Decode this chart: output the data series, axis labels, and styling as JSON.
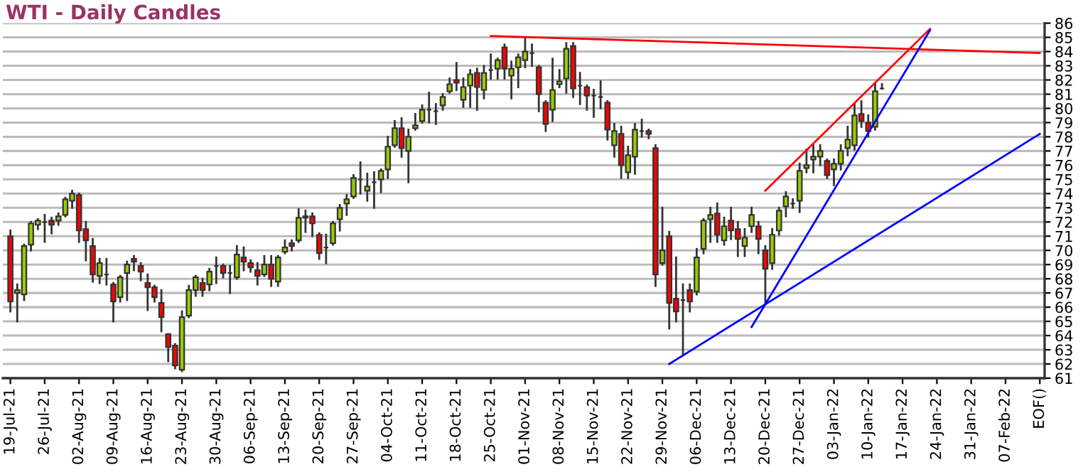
{
  "chart_data": {
    "type": "candlestick",
    "title": "WTI - Daily Candles",
    "categories": [
      "19-Jul-21",
      null,
      null,
      null,
      null,
      "26-Jul-21",
      null,
      null,
      null,
      null,
      "02-Aug-21",
      null,
      null,
      null,
      null,
      "09-Aug-21",
      null,
      null,
      null,
      null,
      "16-Aug-21",
      null,
      null,
      null,
      null,
      "23-Aug-21",
      null,
      null,
      null,
      null,
      "30-Aug-21",
      null,
      null,
      null,
      null,
      "06-Sep-21",
      null,
      null,
      null,
      null,
      "13-Sep-21",
      null,
      null,
      null,
      null,
      "20-Sep-21",
      null,
      null,
      null,
      null,
      "27-Sep-21",
      null,
      null,
      null,
      null,
      "04-Oct-21",
      null,
      null,
      null,
      null,
      "11-Oct-21",
      null,
      null,
      null,
      null,
      "18-Oct-21",
      null,
      null,
      null,
      null,
      "25-Oct-21",
      null,
      null,
      null,
      null,
      "01-Nov-21",
      null,
      null,
      null,
      null,
      "08-Nov-21",
      null,
      null,
      null,
      null,
      "15-Nov-21",
      null,
      null,
      null,
      null,
      "22-Nov-21",
      null,
      null,
      null,
      null,
      "29-Nov-21",
      null,
      null,
      null,
      null,
      "06-Dec-21",
      null,
      null,
      null,
      null,
      "13-Dec-21",
      null,
      null,
      null,
      null,
      "20-Dec-21",
      null,
      null,
      null,
      null,
      "27-Dec-21",
      null,
      null,
      null,
      null,
      "03-Jan-22",
      null,
      null,
      null,
      null,
      "10-Jan-22",
      null,
      null,
      null,
      null,
      "17-Jan-22",
      null,
      null,
      null,
      null,
      "24-Jan-22",
      null,
      null,
      null,
      null,
      "31-Jan-22",
      null,
      null,
      null,
      null,
      "07-Feb-22",
      null,
      null,
      null,
      null,
      "EOF()"
    ],
    "ohlc": [
      [
        71.0,
        71.4,
        65.7,
        66.4
      ],
      [
        67.0,
        67.6,
        65.0,
        67.2
      ],
      [
        66.9,
        70.4,
        66.5,
        70.3
      ],
      [
        70.4,
        72.0,
        70.0,
        71.9
      ],
      [
        71.8,
        72.2,
        71.5,
        72.1
      ],
      [
        72.0,
        72.5,
        70.6,
        72.0
      ],
      [
        72.1,
        72.3,
        71.2,
        71.8
      ],
      [
        72.1,
        72.6,
        71.8,
        72.4
      ],
      [
        72.5,
        73.7,
        72.4,
        73.6
      ],
      [
        73.5,
        74.2,
        73.0,
        74.0
      ],
      [
        73.9,
        74.0,
        70.6,
        71.4
      ],
      [
        71.5,
        72.0,
        69.3,
        70.7
      ],
      [
        70.3,
        70.8,
        67.8,
        68.3
      ],
      [
        68.2,
        69.4,
        67.7,
        69.1
      ],
      [
        68.3,
        69.4,
        67.6,
        68.3
      ],
      [
        67.6,
        67.7,
        65.0,
        66.4
      ],
      [
        66.7,
        68.2,
        66.4,
        68.1
      ],
      [
        68.4,
        69.2,
        66.5,
        69.0
      ],
      [
        69.4,
        69.6,
        68.6,
        69.2
      ],
      [
        68.9,
        69.1,
        67.9,
        68.5
      ],
      [
        67.7,
        68.3,
        65.8,
        67.4
      ],
      [
        67.4,
        67.5,
        66.4,
        66.7
      ],
      [
        66.3,
        67.2,
        64.3,
        65.3
      ],
      [
        64.1,
        64.1,
        62.2,
        63.2
      ],
      [
        63.3,
        63.4,
        61.7,
        61.9
      ],
      [
        61.6,
        65.7,
        61.5,
        65.3
      ],
      [
        65.4,
        67.5,
        65.3,
        67.2
      ],
      [
        67.2,
        68.2,
        66.8,
        68.1
      ],
      [
        67.7,
        68.0,
        66.8,
        67.2
      ],
      [
        67.6,
        68.7,
        67.2,
        68.5
      ],
      [
        68.9,
        69.5,
        67.7,
        68.9
      ],
      [
        68.9,
        69.0,
        68.1,
        68.4
      ],
      [
        68.4,
        68.9,
        67.0,
        68.4
      ],
      [
        68.1,
        70.3,
        68.0,
        69.7
      ],
      [
        69.5,
        70.2,
        68.6,
        69.2
      ],
      [
        69.1,
        69.3,
        68.5,
        68.8
      ],
      [
        68.6,
        69.1,
        67.6,
        68.2
      ],
      [
        68.3,
        69.6,
        68.2,
        69.0
      ],
      [
        69.0,
        69.6,
        67.5,
        68.0
      ],
      [
        67.8,
        69.6,
        67.5,
        69.5
      ],
      [
        69.9,
        70.7,
        69.8,
        70.2
      ],
      [
        70.5,
        70.7,
        70.0,
        70.3
      ],
      [
        70.7,
        72.9,
        70.6,
        72.3
      ],
      [
        72.4,
        72.8,
        71.3,
        72.3
      ],
      [
        72.4,
        72.6,
        71.0,
        71.9
      ],
      [
        71.1,
        71.2,
        69.4,
        69.8
      ],
      [
        70.2,
        71.1,
        69.1,
        70.2
      ],
      [
        70.5,
        72.0,
        70.4,
        71.9
      ],
      [
        72.2,
        73.2,
        71.4,
        73.0
      ],
      [
        73.3,
        73.9,
        72.5,
        73.6
      ],
      [
        73.8,
        75.3,
        73.7,
        75.1
      ],
      [
        75.0,
        76.2,
        74.0,
        75.0
      ],
      [
        74.2,
        75.4,
        73.5,
        74.5
      ],
      [
        74.8,
        75.5,
        73.0,
        74.8
      ],
      [
        75.0,
        75.7,
        74.1,
        75.6
      ],
      [
        75.7,
        78.0,
        75.1,
        77.3
      ],
      [
        77.4,
        79.1,
        77.3,
        78.6
      ],
      [
        78.6,
        79.3,
        76.6,
        77.2
      ],
      [
        77.0,
        78.5,
        74.8,
        78.0
      ],
      [
        78.6,
        79.6,
        78.5,
        78.8
      ],
      [
        79.1,
        80.2,
        79.0,
        79.9
      ],
      [
        79.9,
        81.1,
        79.0,
        79.9
      ],
      [
        79.8,
        80.3,
        78.9,
        79.8
      ],
      [
        80.2,
        81.0,
        79.9,
        80.8
      ],
      [
        81.2,
        82.1,
        81.1,
        81.7
      ],
      [
        82.0,
        83.2,
        81.3,
        81.8
      ],
      [
        80.6,
        82.1,
        80.1,
        81.5
      ],
      [
        81.6,
        82.7,
        80.1,
        82.4
      ],
      [
        82.5,
        82.8,
        79.9,
        81.5
      ],
      [
        81.3,
        83.0,
        80.7,
        82.5
      ],
      [
        82.7,
        83.8,
        82.1,
        82.7
      ],
      [
        82.8,
        83.5,
        82.1,
        83.4
      ],
      [
        84.3,
        84.5,
        82.1,
        82.8
      ],
      [
        82.3,
        83.3,
        80.7,
        82.8
      ],
      [
        82.9,
        83.8,
        81.5,
        83.6
      ],
      [
        83.4,
        85.0,
        82.9,
        84.0
      ],
      [
        83.9,
        84.5,
        83.0,
        83.9
      ],
      [
        82.9,
        83.0,
        79.8,
        81.0
      ],
      [
        80.4,
        80.5,
        78.4,
        78.9
      ],
      [
        79.9,
        83.5,
        79.1,
        81.3
      ],
      [
        81.7,
        82.7,
        81.5,
        81.9
      ],
      [
        82.1,
        84.6,
        81.1,
        84.2
      ],
      [
        84.4,
        84.6,
        80.8,
        81.4
      ],
      [
        81.6,
        82.5,
        80.3,
        81.6
      ],
      [
        81.5,
        81.6,
        79.9,
        80.9
      ],
      [
        80.9,
        81.3,
        79.4,
        80.9
      ],
      [
        80.8,
        81.9,
        80.0,
        80.8
      ],
      [
        80.4,
        80.5,
        77.8,
        78.5
      ],
      [
        77.4,
        78.9,
        76.6,
        78.4
      ],
      [
        78.2,
        78.7,
        75.1,
        76.0
      ],
      [
        75.5,
        77.3,
        75.1,
        76.7
      ],
      [
        76.6,
        78.9,
        75.4,
        78.5
      ],
      [
        78.4,
        79.2,
        78.0,
        78.4
      ],
      [
        78.4,
        78.5,
        77.9,
        78.2
      ],
      [
        77.2,
        77.4,
        67.5,
        68.3
      ],
      [
        69.1,
        73.0,
        69.0,
        70.0
      ],
      [
        71.0,
        71.3,
        64.5,
        66.3
      ],
      [
        66.6,
        69.5,
        65.0,
        65.7
      ],
      [
        66.5,
        67.6,
        62.7,
        66.5
      ],
      [
        67.2,
        67.6,
        65.7,
        66.4
      ],
      [
        67.1,
        70.1,
        66.9,
        69.5
      ],
      [
        70.1,
        72.2,
        69.8,
        72.1
      ],
      [
        72.2,
        73.0,
        70.6,
        72.5
      ],
      [
        72.6,
        73.3,
        70.6,
        71.1
      ],
      [
        70.7,
        72.3,
        70.4,
        71.7
      ],
      [
        72.1,
        73.0,
        70.8,
        71.4
      ],
      [
        71.5,
        72.0,
        69.6,
        70.8
      ],
      [
        70.3,
        71.5,
        69.6,
        70.9
      ],
      [
        71.7,
        73.0,
        71.3,
        72.5
      ],
      [
        71.7,
        72.0,
        69.8,
        70.8
      ],
      [
        70.0,
        70.3,
        66.2,
        68.7
      ],
      [
        69.1,
        71.5,
        68.7,
        71.1
      ],
      [
        71.4,
        73.0,
        71.1,
        72.8
      ],
      [
        73.1,
        74.1,
        72.4,
        73.8
      ],
      [
        73.3,
        73.6,
        73.0,
        73.3
      ],
      [
        73.5,
        76.1,
        72.7,
        75.6
      ],
      [
        75.8,
        77.1,
        75.5,
        76.0
      ],
      [
        76.4,
        77.4,
        75.5,
        76.6
      ],
      [
        76.6,
        77.4,
        76.0,
        77.0
      ],
      [
        76.3,
        76.4,
        75.1,
        75.3
      ],
      [
        75.7,
        76.4,
        74.6,
        76.1
      ],
      [
        76.1,
        77.4,
        75.7,
        77.0
      ],
      [
        77.2,
        78.7,
        76.7,
        77.8
      ],
      [
        77.4,
        80.3,
        77.1,
        79.5
      ],
      [
        79.6,
        80.5,
        78.7,
        79.1
      ],
      [
        79.0,
        79.5,
        78.0,
        78.4
      ],
      [
        78.7,
        81.7,
        78.5,
        81.2
      ],
      [
        81.4,
        81.7,
        81.4,
        81.4
      ],
      null,
      null,
      null,
      null,
      null,
      null,
      null,
      null,
      null,
      null,
      null,
      null,
      null,
      null,
      null,
      null,
      null,
      null,
      null,
      null,
      null,
      null,
      null
    ],
    "colors": [
      "#ff0000",
      "#99cc00",
      "#99cc00",
      "#99cc00",
      "#99cc00",
      "#333333",
      "#ff0000",
      "#99cc00",
      "#99cc00",
      "#99cc00",
      "#ff0000",
      "#ff0000",
      "#ff0000",
      "#99cc00",
      "#333333",
      "#ff0000",
      "#99cc00",
      "#99cc00",
      "#ff0000",
      "#ff0000",
      "#ff0000",
      "#ff0000",
      "#ff0000",
      "#ff0000",
      "#ff0000",
      "#99cc00",
      "#99cc00",
      "#99cc00",
      "#ff0000",
      "#99cc00",
      "#333333",
      "#ff0000",
      "#333333",
      "#99cc00",
      "#ff0000",
      "#ff0000",
      "#ff0000",
      "#99cc00",
      "#ff0000",
      "#99cc00",
      "#99cc00",
      "#ff0000",
      "#99cc00",
      "#ff0000",
      "#ff0000",
      "#ff0000",
      "#333333",
      "#99cc00",
      "#99cc00",
      "#99cc00",
      "#99cc00",
      "#333333",
      "#99cc00",
      "#333333",
      "#99cc00",
      "#99cc00",
      "#99cc00",
      "#ff0000",
      "#99cc00",
      "#99cc00",
      "#99cc00",
      "#333333",
      "#333333",
      "#99cc00",
      "#99cc00",
      "#ff0000",
      "#99cc00",
      "#99cc00",
      "#ff0000",
      "#99cc00",
      "#333333",
      "#99cc00",
      "#ff0000",
      "#99cc00",
      "#99cc00",
      "#99cc00",
      "#333333",
      "#ff0000",
      "#ff0000",
      "#99cc00",
      "#99cc00",
      "#99cc00",
      "#ff0000",
      "#333333",
      "#ff0000",
      "#333333",
      "#333333",
      "#ff0000",
      "#99cc00",
      "#ff0000",
      "#99cc00",
      "#99cc00",
      "#333333",
      "#ff0000",
      "#ff0000",
      "#99cc00",
      "#ff0000",
      "#ff0000",
      "#333333",
      "#ff0000",
      "#99cc00",
      "#99cc00",
      "#99cc00",
      "#ff0000",
      "#99cc00",
      "#ff0000",
      "#ff0000",
      "#99cc00",
      "#99cc00",
      "#ff0000",
      "#ff0000",
      "#99cc00",
      "#99cc00",
      "#99cc00",
      "#333333",
      "#99cc00",
      "#99cc00",
      "#99cc00",
      "#99cc00",
      "#ff0000",
      "#99cc00",
      "#99cc00",
      "#99cc00",
      "#99cc00",
      "#ff0000",
      "#ff0000",
      "#99cc00",
      "#333333",
      null,
      null,
      null,
      null,
      null,
      null,
      null,
      null,
      null,
      null,
      null,
      null,
      null,
      null,
      null,
      null,
      null,
      null,
      null,
      null,
      null,
      null,
      null
    ],
    "series": [
      {
        "type": "line",
        "color": "#ff0000",
        "values": [
          null,
          null,
          null,
          null,
          null,
          null,
          null,
          null,
          null,
          null,
          null,
          null,
          null,
          null,
          null,
          null,
          null,
          null,
          null,
          null,
          null,
          null,
          null,
          null,
          null,
          null,
          null,
          null,
          null,
          null,
          null,
          null,
          null,
          null,
          null,
          null,
          null,
          null,
          null,
          null,
          null,
          null,
          null,
          null,
          null,
          null,
          null,
          null,
          null,
          null,
          null,
          null,
          null,
          null,
          null,
          null,
          null,
          null,
          null,
          null,
          null,
          null,
          null,
          null,
          null,
          null,
          null,
          null,
          null,
          null,
          85.1,
          null,
          null,
          null,
          null,
          null,
          null,
          null,
          null,
          null,
          null,
          null,
          null,
          null,
          null,
          null,
          null,
          null,
          null,
          null,
          null,
          null,
          null,
          null,
          null,
          null,
          null,
          null,
          null,
          null,
          null,
          null,
          null,
          null,
          null,
          null,
          null,
          null,
          null,
          null,
          null,
          null,
          null,
          null,
          null,
          null,
          null,
          null,
          null,
          null,
          null,
          null,
          null,
          null,
          null,
          null,
          null,
          null,
          null,
          null,
          null,
          null,
          null,
          null,
          null,
          null,
          null,
          null,
          null,
          null,
          null,
          null,
          null,
          null,
          null,
          null,
          null,
          null,
          null,
          null,
          83.9
        ]
      },
      {
        "type": "line",
        "color": "#ff0000",
        "values": [
          null,
          null,
          null,
          null,
          null,
          null,
          null,
          null,
          null,
          null,
          null,
          null,
          null,
          null,
          null,
          null,
          null,
          null,
          null,
          null,
          null,
          null,
          null,
          null,
          null,
          null,
          null,
          null,
          null,
          null,
          null,
          null,
          null,
          null,
          null,
          null,
          null,
          null,
          null,
          null,
          null,
          null,
          null,
          null,
          null,
          null,
          null,
          null,
          null,
          null,
          null,
          null,
          null,
          null,
          null,
          null,
          null,
          null,
          null,
          null,
          null,
          null,
          null,
          null,
          null,
          null,
          null,
          null,
          null,
          null,
          null,
          null,
          null,
          null,
          null,
          null,
          null,
          null,
          null,
          null,
          null,
          null,
          null,
          null,
          null,
          null,
          null,
          null,
          null,
          null,
          null,
          null,
          null,
          null,
          null,
          null,
          null,
          null,
          null,
          null,
          null,
          null,
          null,
          null,
          null,
          null,
          null,
          null,
          null,
          null,
          74.2,
          null,
          null,
          null,
          null,
          null,
          null,
          null,
          null,
          null,
          null,
          null,
          null,
          null,
          null,
          null,
          null,
          null,
          null,
          null,
          null,
          null,
          null,
          null,
          85.6,
          null,
          null,
          null,
          null,
          null,
          null,
          null,
          null,
          null,
          null,
          null,
          null,
          null,
          null,
          null,
          null
        ]
      },
      {
        "type": "line",
        "color": "#0000ff",
        "values": [
          null,
          null,
          null,
          null,
          null,
          null,
          null,
          null,
          null,
          null,
          null,
          null,
          null,
          null,
          null,
          null,
          null,
          null,
          null,
          null,
          null,
          null,
          null,
          null,
          null,
          null,
          null,
          null,
          null,
          null,
          null,
          null,
          null,
          null,
          null,
          null,
          null,
          null,
          null,
          null,
          null,
          null,
          null,
          null,
          null,
          null,
          null,
          null,
          null,
          null,
          null,
          null,
          null,
          null,
          null,
          null,
          null,
          null,
          null,
          null,
          null,
          null,
          null,
          null,
          null,
          null,
          null,
          null,
          null,
          null,
          null,
          null,
          null,
          null,
          null,
          null,
          null,
          null,
          null,
          null,
          null,
          null,
          null,
          null,
          null,
          null,
          null,
          null,
          null,
          null,
          null,
          null,
          null,
          null,
          null,
          null,
          null,
          null,
          null,
          null,
          null,
          null,
          null,
          null,
          null,
          null,
          null,
          null,
          64.6,
          null,
          null,
          null,
          null,
          null,
          null,
          null,
          null,
          null,
          null,
          null,
          null,
          null,
          null,
          null,
          null,
          null,
          null,
          null,
          null,
          null,
          null,
          null,
          null,
          null,
          85.5,
          null,
          null,
          null,
          null,
          null,
          null,
          null,
          null,
          null,
          null,
          null,
          null,
          null,
          null,
          null,
          null
        ]
      },
      {
        "type": "line",
        "color": "#0000ff",
        "values": [
          null,
          null,
          null,
          null,
          null,
          null,
          null,
          null,
          null,
          null,
          null,
          null,
          null,
          null,
          null,
          null,
          null,
          null,
          null,
          null,
          null,
          null,
          null,
          null,
          null,
          null,
          null,
          null,
          null,
          null,
          null,
          null,
          null,
          null,
          null,
          null,
          null,
          null,
          null,
          null,
          null,
          null,
          null,
          null,
          null,
          null,
          null,
          null,
          null,
          null,
          null,
          null,
          null,
          null,
          null,
          null,
          null,
          null,
          null,
          null,
          null,
          null,
          null,
          null,
          null,
          null,
          null,
          null,
          null,
          null,
          null,
          null,
          null,
          null,
          null,
          null,
          null,
          null,
          null,
          null,
          null,
          null,
          null,
          null,
          null,
          null,
          null,
          null,
          null,
          null,
          null,
          null,
          null,
          null,
          null,
          null,
          62.0,
          null,
          null,
          null,
          null,
          null,
          null,
          null,
          null,
          null,
          null,
          null,
          null,
          null,
          null,
          null,
          null,
          null,
          null,
          null,
          null,
          null,
          null,
          null,
          null,
          null,
          null,
          null,
          null,
          null,
          null,
          null,
          null,
          null,
          null,
          null,
          null,
          null,
          null,
          null,
          null,
          null,
          null,
          null,
          null,
          null,
          null,
          null,
          null,
          null,
          null,
          null,
          null,
          null,
          78.2
        ]
      }
    ],
    "ylim": [
      61,
      86
    ],
    "yticks": [
      61,
      62,
      63,
      64,
      65,
      66,
      67,
      68,
      69,
      70,
      71,
      72,
      73,
      74,
      75,
      76,
      77,
      78,
      79,
      80,
      81,
      82,
      83,
      84,
      85,
      86
    ],
    "grid": "y"
  }
}
